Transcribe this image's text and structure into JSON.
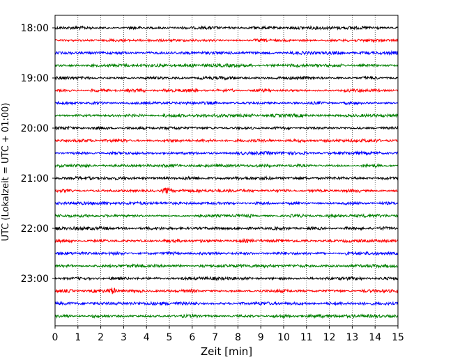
{
  "chart_data": {
    "type": "line",
    "title": "",
    "xlabel": "Zeit  [min]",
    "ylabel": "UTC (Lokalzeit = UTC + 01:00)",
    "xlim": [
      0,
      15
    ],
    "x_ticks": [
      "0",
      "1",
      "2",
      "3",
      "4",
      "5",
      "6",
      "7",
      "8",
      "9",
      "10",
      "11",
      "12",
      "13",
      "14",
      "15"
    ],
    "y_tick_labels": [
      "18:00",
      "19:00",
      "20:00",
      "21:00",
      "22:00",
      "23:00"
    ],
    "grid": "vertical dotted lines at each minute",
    "trace_colors_cycle": [
      "#000000",
      "#ff0000",
      "#0000ff",
      "#008000"
    ],
    "traces_count": 24,
    "trace_interval_minutes": 15,
    "first_trace_start": "18:00",
    "notable_events": [
      {
        "trace_start": "21:15",
        "x_min": 4.9,
        "description": "larger amplitude burst"
      },
      {
        "trace_start": "23:15",
        "x_min": 2.5,
        "description": "spike"
      }
    ]
  }
}
